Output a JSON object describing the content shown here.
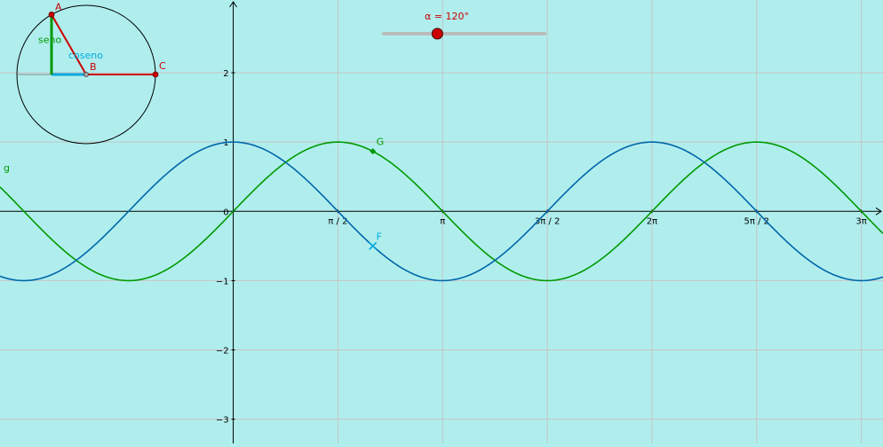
{
  "slider": {
    "label": "α = 120°",
    "value_deg": 120,
    "min_deg": 0,
    "max_deg": 360,
    "track_color": "#bbbbbb",
    "knob_color": "#cc0000"
  },
  "unit_circle": {
    "angle_deg": 120,
    "points": {
      "A": "A",
      "B": "B",
      "C": "C"
    },
    "labels": {
      "sine": "seno",
      "cosine": "coseno"
    },
    "colors": {
      "sine": "#009900",
      "cosine": "#00aadd",
      "radius": "#cc0000",
      "circle": "#000000"
    }
  },
  "chart_data": {
    "type": "line",
    "xlim": [
      -3.5,
      9.75
    ],
    "ylim": [
      -3.35,
      3.05
    ],
    "x_ticks": [
      {
        "value": 1.5708,
        "label": "π / 2"
      },
      {
        "value": 3.1416,
        "label": "π"
      },
      {
        "value": 4.7124,
        "label": "3π / 2"
      },
      {
        "value": 6.2832,
        "label": "2π"
      },
      {
        "value": 7.854,
        "label": "5π / 2"
      },
      {
        "value": 9.4248,
        "label": "3π"
      }
    ],
    "y_ticks": [
      {
        "value": 2,
        "label": "2"
      },
      {
        "value": 1,
        "label": "1"
      },
      {
        "value": 0,
        "label": "0"
      },
      {
        "value": -1,
        "label": "−1"
      },
      {
        "value": -2,
        "label": "−2"
      },
      {
        "value": -3,
        "label": "−3"
      }
    ],
    "grid": true,
    "series": [
      {
        "name": "g",
        "function": "sin",
        "color": "#009900"
      },
      {
        "name": "",
        "function": "cos",
        "color": "#0066aa"
      }
    ],
    "points": [
      {
        "name": "G",
        "x": 2.0944,
        "y": 0.866,
        "color": "#009900",
        "marker": "diamond"
      },
      {
        "name": "F",
        "x": 2.0944,
        "y": -0.5,
        "color": "#00aadd",
        "marker": "cross"
      }
    ],
    "colors": {
      "grid": "#c4c4c4",
      "axis": "#000000"
    }
  }
}
